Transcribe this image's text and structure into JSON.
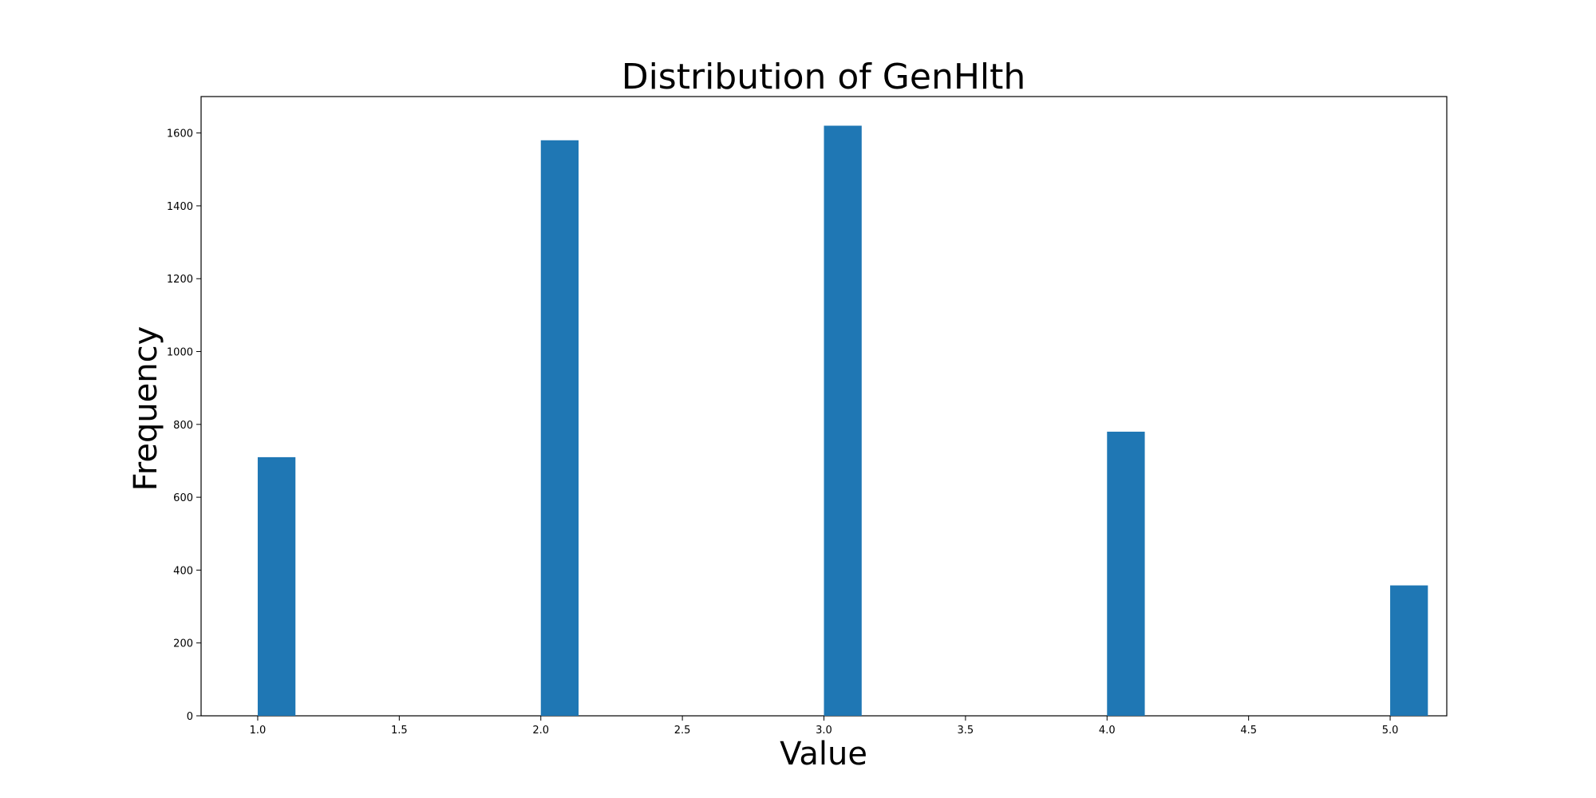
{
  "chart_data": {
    "type": "bar",
    "title": "Distribution of GenHlth",
    "xlabel": "Value",
    "ylabel": "Frequency",
    "x": [
      1.0,
      2.0,
      3.0,
      4.0,
      5.0
    ],
    "values": [
      710,
      1580,
      1620,
      780,
      358
    ],
    "bin_width": 0.1333,
    "xlim": [
      0.8,
      5.2
    ],
    "ylim": [
      0,
      1700
    ],
    "xticks": [
      1.0,
      1.5,
      2.0,
      2.5,
      3.0,
      3.5,
      4.0,
      4.5,
      5.0
    ],
    "xtick_labels": [
      "1.0",
      "1.5",
      "2.0",
      "2.5",
      "3.0",
      "3.5",
      "4.0",
      "4.5",
      "5.0"
    ],
    "yticks": [
      0,
      200,
      400,
      600,
      800,
      1000,
      1200,
      1400,
      1600
    ],
    "ytick_labels": [
      "0",
      "200",
      "400",
      "600",
      "800",
      "1000",
      "1200",
      "1400",
      "1600"
    ],
    "bar_color": "#1f77b4",
    "grid": false,
    "legend": "none"
  }
}
